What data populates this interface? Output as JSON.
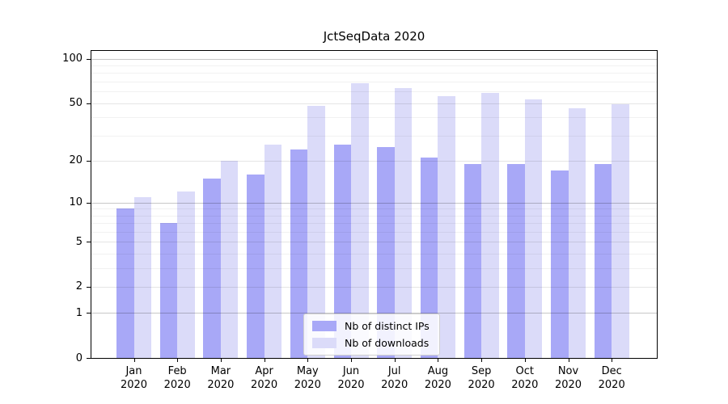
{
  "title": "JctSeqData 2020",
  "chart_data": {
    "type": "bar",
    "title": "JctSeqData 2020",
    "categories": [
      "Jan 2020",
      "Feb 2020",
      "Mar 2020",
      "Apr 2020",
      "May 2020",
      "Jun 2020",
      "Jul 2020",
      "Aug 2020",
      "Sep 2020",
      "Oct 2020",
      "Nov 2020",
      "Dec 2020"
    ],
    "series": [
      {
        "name": "Nb of distinct IPs",
        "color": "#a8a8f7",
        "values": [
          9,
          7,
          15,
          16,
          24,
          26,
          25,
          21,
          19,
          19,
          17,
          19
        ]
      },
      {
        "name": "Nb of downloads",
        "color": "#dbdbf9",
        "values": [
          11,
          12,
          20,
          26,
          48,
          68,
          63,
          56,
          59,
          53,
          46,
          49
        ]
      }
    ],
    "y_scale": "log1p",
    "y_ticks": [
      0,
      1,
      2,
      5,
      10,
      20,
      50,
      100
    ],
    "y_minor_ticks": [
      3,
      4,
      6,
      7,
      8,
      9,
      30,
      40,
      60,
      70,
      80,
      90
    ],
    "y_max": 112,
    "xlabel": "",
    "ylabel": "",
    "grid": true,
    "legend_position": "lower center"
  }
}
